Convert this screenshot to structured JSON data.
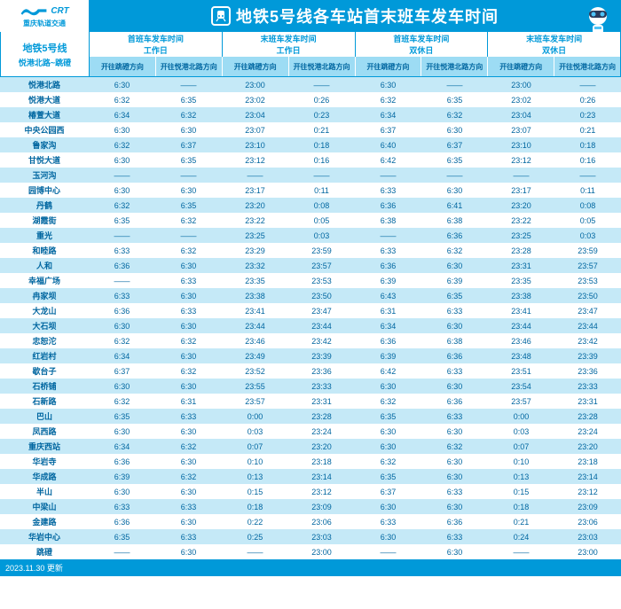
{
  "header": {
    "logo_text": "重庆轨道交通",
    "logo_letters": "CRT",
    "title": "地铁5号线各车站首末班车发车时间"
  },
  "line": {
    "name": "地铁5号线",
    "route": "悦港北路~跳磴"
  },
  "groups": [
    {
      "top": "首班车发车时间",
      "bottom": "工作日"
    },
    {
      "top": "末班车发车时间",
      "bottom": "工作日"
    },
    {
      "top": "首班车发车时间",
      "bottom": "双休日"
    },
    {
      "top": "末班车发车时间",
      "bottom": "双休日"
    }
  ],
  "directions": [
    "开往跳磴方向",
    "开往悦港北路方向"
  ],
  "stations": [
    {
      "n": "悦港北路",
      "v": [
        "6:30",
        "——",
        "23:00",
        "——",
        "6:30",
        "——",
        "23:00",
        "——"
      ]
    },
    {
      "n": "悦港大道",
      "v": [
        "6:32",
        "6:35",
        "23:02",
        "0:26",
        "6:32",
        "6:35",
        "23:02",
        "0:26"
      ]
    },
    {
      "n": "椿萱大道",
      "v": [
        "6:34",
        "6:32",
        "23:04",
        "0:23",
        "6:34",
        "6:32",
        "23:04",
        "0:23"
      ]
    },
    {
      "n": "中央公园西",
      "v": [
        "6:30",
        "6:30",
        "23:07",
        "0:21",
        "6:37",
        "6:30",
        "23:07",
        "0:21"
      ]
    },
    {
      "n": "鲁家沟",
      "v": [
        "6:32",
        "6:37",
        "23:10",
        "0:18",
        "6:40",
        "6:37",
        "23:10",
        "0:18"
      ]
    },
    {
      "n": "甘悦大道",
      "v": [
        "6:30",
        "6:35",
        "23:12",
        "0:16",
        "6:42",
        "6:35",
        "23:12",
        "0:16"
      ]
    },
    {
      "n": "玉河沟",
      "v": [
        "——",
        "——",
        "——",
        "——",
        "——",
        "——",
        "——",
        "——"
      ]
    },
    {
      "n": "园博中心",
      "v": [
        "6:30",
        "6:30",
        "23:17",
        "0:11",
        "6:33",
        "6:30",
        "23:17",
        "0:11"
      ]
    },
    {
      "n": "丹鹤",
      "v": [
        "6:32",
        "6:35",
        "23:20",
        "0:08",
        "6:36",
        "6:41",
        "23:20",
        "0:08"
      ]
    },
    {
      "n": "湖霞街",
      "v": [
        "6:35",
        "6:32",
        "23:22",
        "0:05",
        "6:38",
        "6:38",
        "23:22",
        "0:05"
      ]
    },
    {
      "n": "重光",
      "v": [
        "——",
        "——",
        "23:25",
        "0:03",
        "——",
        "6:36",
        "23:25",
        "0:03"
      ]
    },
    {
      "n": "和睦路",
      "v": [
        "6:33",
        "6:32",
        "23:29",
        "23:59",
        "6:33",
        "6:32",
        "23:28",
        "23:59"
      ]
    },
    {
      "n": "人和",
      "v": [
        "6:36",
        "6:30",
        "23:32",
        "23:57",
        "6:36",
        "6:30",
        "23:31",
        "23:57"
      ]
    },
    {
      "n": "幸福广场",
      "v": [
        "——",
        "6:33",
        "23:35",
        "23:53",
        "6:39",
        "6:39",
        "23:35",
        "23:53"
      ]
    },
    {
      "n": "冉家坝",
      "v": [
        "6:33",
        "6:30",
        "23:38",
        "23:50",
        "6:43",
        "6:35",
        "23:38",
        "23:50"
      ]
    },
    {
      "n": "大龙山",
      "v": [
        "6:36",
        "6:33",
        "23:41",
        "23:47",
        "6:31",
        "6:33",
        "23:41",
        "23:47"
      ]
    },
    {
      "n": "大石坝",
      "v": [
        "6:30",
        "6:30",
        "23:44",
        "23:44",
        "6:34",
        "6:30",
        "23:44",
        "23:44"
      ]
    },
    {
      "n": "忠恕沱",
      "v": [
        "6:32",
        "6:32",
        "23:46",
        "23:42",
        "6:36",
        "6:38",
        "23:46",
        "23:42"
      ]
    },
    {
      "n": "红岩村",
      "v": [
        "6:34",
        "6:30",
        "23:49",
        "23:39",
        "6:39",
        "6:36",
        "23:48",
        "23:39"
      ]
    },
    {
      "n": "歇台子",
      "v": [
        "6:37",
        "6:32",
        "23:52",
        "23:36",
        "6:42",
        "6:33",
        "23:51",
        "23:36"
      ]
    },
    {
      "n": "石桥铺",
      "v": [
        "6:30",
        "6:30",
        "23:55",
        "23:33",
        "6:30",
        "6:30",
        "23:54",
        "23:33"
      ]
    },
    {
      "n": "石新路",
      "v": [
        "6:32",
        "6:31",
        "23:57",
        "23:31",
        "6:32",
        "6:36",
        "23:57",
        "23:31"
      ]
    },
    {
      "n": "巴山",
      "v": [
        "6:35",
        "6:33",
        "0:00",
        "23:28",
        "6:35",
        "6:33",
        "0:00",
        "23:28"
      ]
    },
    {
      "n": "凤西路",
      "v": [
        "6:30",
        "6:30",
        "0:03",
        "23:24",
        "6:30",
        "6:30",
        "0:03",
        "23:24"
      ]
    },
    {
      "n": "重庆西站",
      "v": [
        "6:34",
        "6:32",
        "0:07",
        "23:20",
        "6:30",
        "6:32",
        "0:07",
        "23:20"
      ]
    },
    {
      "n": "华岩寺",
      "v": [
        "6:36",
        "6:30",
        "0:10",
        "23:18",
        "6:32",
        "6:30",
        "0:10",
        "23:18"
      ]
    },
    {
      "n": "华成路",
      "v": [
        "6:39",
        "6:32",
        "0:13",
        "23:14",
        "6:35",
        "6:30",
        "0:13",
        "23:14"
      ]
    },
    {
      "n": "半山",
      "v": [
        "6:30",
        "6:30",
        "0:15",
        "23:12",
        "6:37",
        "6:33",
        "0:15",
        "23:12"
      ]
    },
    {
      "n": "中梁山",
      "v": [
        "6:33",
        "6:33",
        "0:18",
        "23:09",
        "6:30",
        "6:30",
        "0:18",
        "23:09"
      ]
    },
    {
      "n": "金建路",
      "v": [
        "6:36",
        "6:30",
        "0:22",
        "23:06",
        "6:33",
        "6:36",
        "0:21",
        "23:06"
      ]
    },
    {
      "n": "华岩中心",
      "v": [
        "6:35",
        "6:33",
        "0:25",
        "23:03",
        "6:30",
        "6:33",
        "0:24",
        "23:03"
      ]
    },
    {
      "n": "跳磴",
      "v": [
        "——",
        "6:30",
        "——",
        "23:00",
        "——",
        "6:30",
        "——",
        "23:00"
      ]
    }
  ],
  "footer": "2023.11.30 更新",
  "colors": {
    "primary": "#0099d9",
    "light": "#c5e9f7",
    "mid": "#9ddcf4",
    "text": "#0066a0"
  }
}
